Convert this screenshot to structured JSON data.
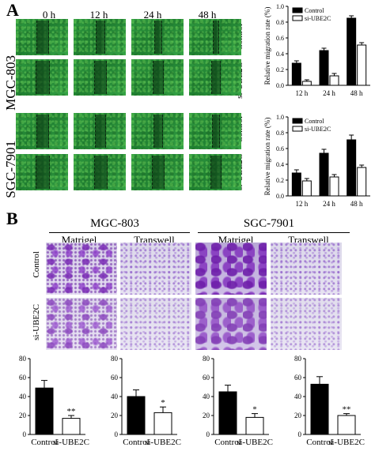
{
  "panelA": {
    "letter": "A",
    "times": [
      "0 h",
      "12 h",
      "24 h",
      "48 h"
    ],
    "cell_lines": [
      "MGC-803",
      "SGC-7901"
    ],
    "conditions": [
      "Control",
      "si-UBE2C"
    ]
  },
  "panelB": {
    "letter": "B",
    "cell_lines": [
      "MGC-803",
      "SGC-7901"
    ],
    "assays": [
      "Matrigel",
      "Transwell"
    ],
    "conditions": [
      "Control",
      "si-UBE2C"
    ]
  },
  "colors": {
    "control": "#000000",
    "si": "#ffffff",
    "wound_green": "#2f9a40",
    "stain_purple": "#7a3fb5"
  },
  "chart_data": [
    {
      "type": "bar",
      "id": "migration-mgc803",
      "ylabel": "Relative migration rate (%)",
      "categories": [
        "12 h",
        "24 h",
        "48 h"
      ],
      "ylim": [
        0.0,
        1.0
      ],
      "yticks": [
        "0.0",
        "0.2",
        "0.4",
        "0.6",
        "0.8",
        "1.0"
      ],
      "series": [
        {
          "name": "Control",
          "values": [
            0.28,
            0.44,
            0.85
          ],
          "errors": [
            0.03,
            0.03,
            0.03
          ]
        },
        {
          "name": "si-UBE2C",
          "values": [
            0.05,
            0.12,
            0.51
          ],
          "errors": [
            0.02,
            0.03,
            0.03
          ]
        }
      ],
      "legend": "top-left"
    },
    {
      "type": "bar",
      "id": "migration-sgc7901",
      "ylabel": "Relative migration rate (%)",
      "categories": [
        "12 h",
        "24 h",
        "48 h"
      ],
      "ylim": [
        0.0,
        1.0
      ],
      "yticks": [
        "0.0",
        "0.2",
        "0.4",
        "0.6",
        "0.8",
        "1.0"
      ],
      "series": [
        {
          "name": "Control",
          "values": [
            0.29,
            0.54,
            0.71
          ],
          "errors": [
            0.04,
            0.05,
            0.06
          ]
        },
        {
          "name": "si-UBE2C",
          "values": [
            0.19,
            0.24,
            0.36
          ],
          "errors": [
            0.03,
            0.03,
            0.03
          ]
        }
      ],
      "legend": "top-left"
    },
    {
      "type": "bar",
      "id": "mgc803-matrigel",
      "categories": [
        "Control",
        "si-UBE2C"
      ],
      "ylim": [
        0,
        80
      ],
      "yticks": [
        "0",
        "20",
        "40",
        "60",
        "80"
      ],
      "values": [
        49,
        17
      ],
      "errors": [
        8,
        3
      ],
      "annotations": [
        "",
        "**"
      ]
    },
    {
      "type": "bar",
      "id": "mgc803-transwell",
      "categories": [
        "Control",
        "si-UBE2C"
      ],
      "ylim": [
        0,
        80
      ],
      "yticks": [
        "0",
        "20",
        "40",
        "60",
        "80"
      ],
      "values": [
        40,
        23
      ],
      "errors": [
        7,
        6
      ],
      "annotations": [
        "",
        "*"
      ]
    },
    {
      "type": "bar",
      "id": "sgc7901-matrigel",
      "categories": [
        "Control",
        "si-UBE2C"
      ],
      "ylim": [
        0,
        80
      ],
      "yticks": [
        "0",
        "20",
        "40",
        "60",
        "80"
      ],
      "values": [
        45,
        18
      ],
      "errors": [
        7,
        4
      ],
      "annotations": [
        "",
        "*"
      ]
    },
    {
      "type": "bar",
      "id": "sgc7901-transwell",
      "categories": [
        "Control",
        "si-UBE2C"
      ],
      "ylim": [
        0,
        80
      ],
      "yticks": [
        "0",
        "20",
        "40",
        "60",
        "80"
      ],
      "values": [
        53,
        20
      ],
      "errors": [
        8,
        2
      ],
      "annotations": [
        "",
        "**"
      ]
    }
  ]
}
